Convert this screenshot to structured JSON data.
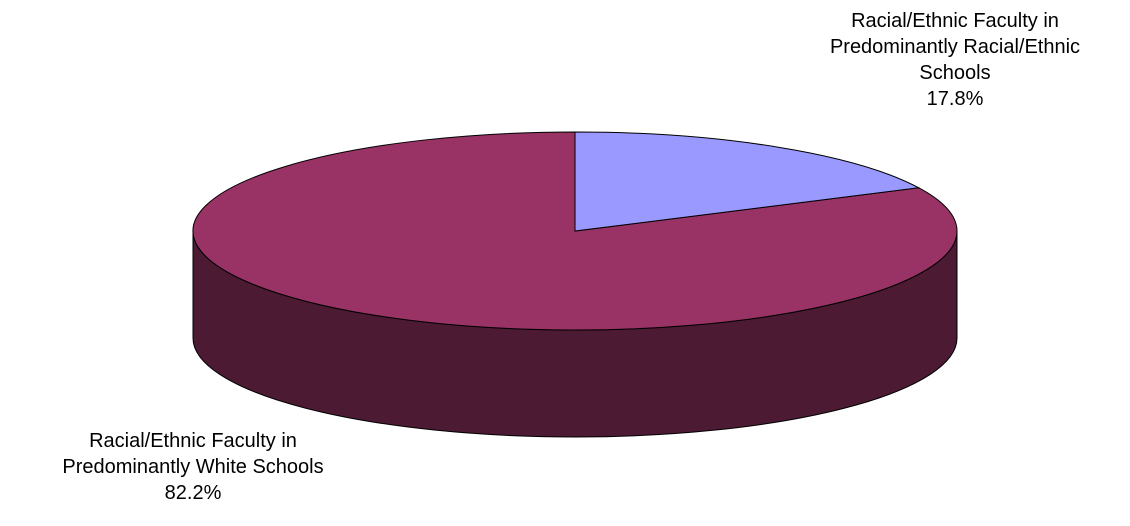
{
  "chart_data": {
    "type": "pie",
    "style": "3d",
    "title": "",
    "slices": [
      {
        "label_lines": [
          "Racial/Ethnic Faculty in",
          "Predominantly White Schools"
        ],
        "value": 82.2,
        "value_label": "82.2%",
        "color": "#993366",
        "side_color": "#4d1a33"
      },
      {
        "label_lines": [
          "Racial/Ethnic Faculty in",
          "Predominantly Racial/Ethnic",
          "Schools"
        ],
        "value": 17.8,
        "value_label": "17.8%",
        "color": "#9999ff",
        "side_color": "#4d4d80"
      }
    ],
    "legend": "none"
  }
}
